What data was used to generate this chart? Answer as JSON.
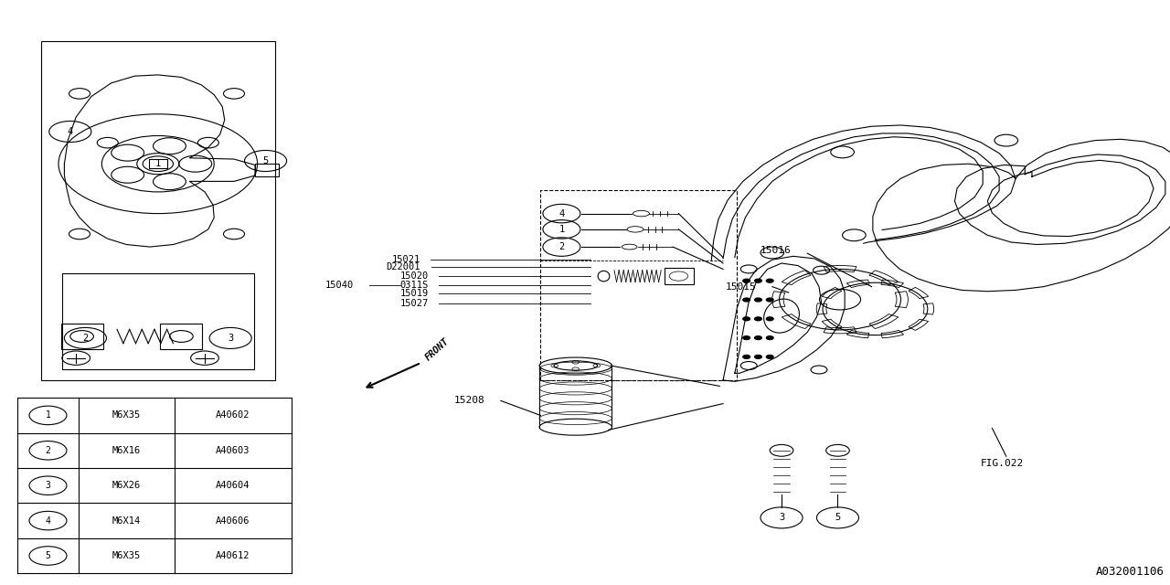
{
  "bg_color": "#ffffff",
  "line_color": "#000000",
  "fig_width": 12.8,
  "fig_height": 6.4,
  "table_data": [
    [
      "1",
      "M6X35",
      "A40602"
    ],
    [
      "2",
      "M6X16",
      "A40603"
    ],
    [
      "3",
      "M6X26",
      "A40604"
    ],
    [
      "4",
      "M6X14",
      "A40606"
    ],
    [
      "5",
      "M6X35",
      "A40612"
    ]
  ],
  "footer_text": "A032001106"
}
